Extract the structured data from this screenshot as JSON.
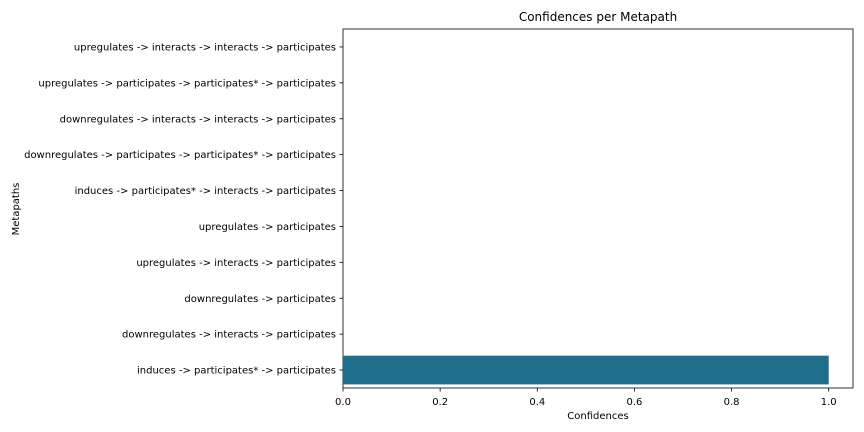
{
  "chart_data": {
    "type": "bar",
    "orientation": "horizontal",
    "title": "Confidences per Metapath",
    "xlabel": "Confidences",
    "ylabel": "Metapaths",
    "xlim": [
      0.0,
      1.05
    ],
    "xticks": [
      "0.0",
      "0.2",
      "0.4",
      "0.6",
      "0.8",
      "1.0"
    ],
    "grid": false,
    "bar_color": "#1f6e8c",
    "categories": [
      "upregulates -> interacts -> interacts -> participates",
      "upregulates -> participates -> participates* -> participates",
      "downregulates -> interacts -> interacts -> participates",
      "downregulates -> participates -> participates* -> participates",
      "induces -> participates* -> interacts -> participates",
      "upregulates -> participates",
      "upregulates -> interacts -> participates",
      "downregulates -> participates",
      "downregulates -> interacts -> participates",
      "induces -> participates* -> participates"
    ],
    "values": [
      0,
      0,
      0,
      0,
      0,
      0,
      0,
      0,
      0,
      1.0
    ]
  }
}
